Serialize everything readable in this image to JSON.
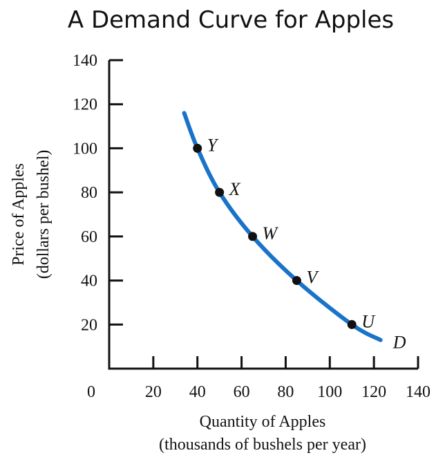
{
  "chart_data": {
    "type": "line",
    "title": "A Demand Curve for Apples",
    "xlabel": [
      "Quantity of Apples",
      "(thousands of bushels per year)"
    ],
    "ylabel": [
      "Price of Apples",
      "(dollars per bushel)"
    ],
    "xlim": [
      0,
      140
    ],
    "ylim": [
      0,
      140
    ],
    "x_ticks": [
      20,
      40,
      60,
      80,
      100,
      120,
      140
    ],
    "y_ticks": [
      20,
      40,
      60,
      80,
      100,
      120,
      140
    ],
    "origin_label": "0",
    "series": [
      {
        "name": "D",
        "color": "#1a73c9",
        "x": [
          34,
          40,
          50,
          65,
          85,
          110,
          123
        ],
        "y": [
          116,
          100,
          80,
          60,
          40,
          20,
          13
        ]
      }
    ],
    "points": [
      {
        "label": "Y",
        "x": 40,
        "y": 100
      },
      {
        "label": "X",
        "x": 50,
        "y": 80
      },
      {
        "label": "W",
        "x": 65,
        "y": 60
      },
      {
        "label": "V",
        "x": 85,
        "y": 40
      },
      {
        "label": "U",
        "x": 110,
        "y": 20
      }
    ]
  }
}
